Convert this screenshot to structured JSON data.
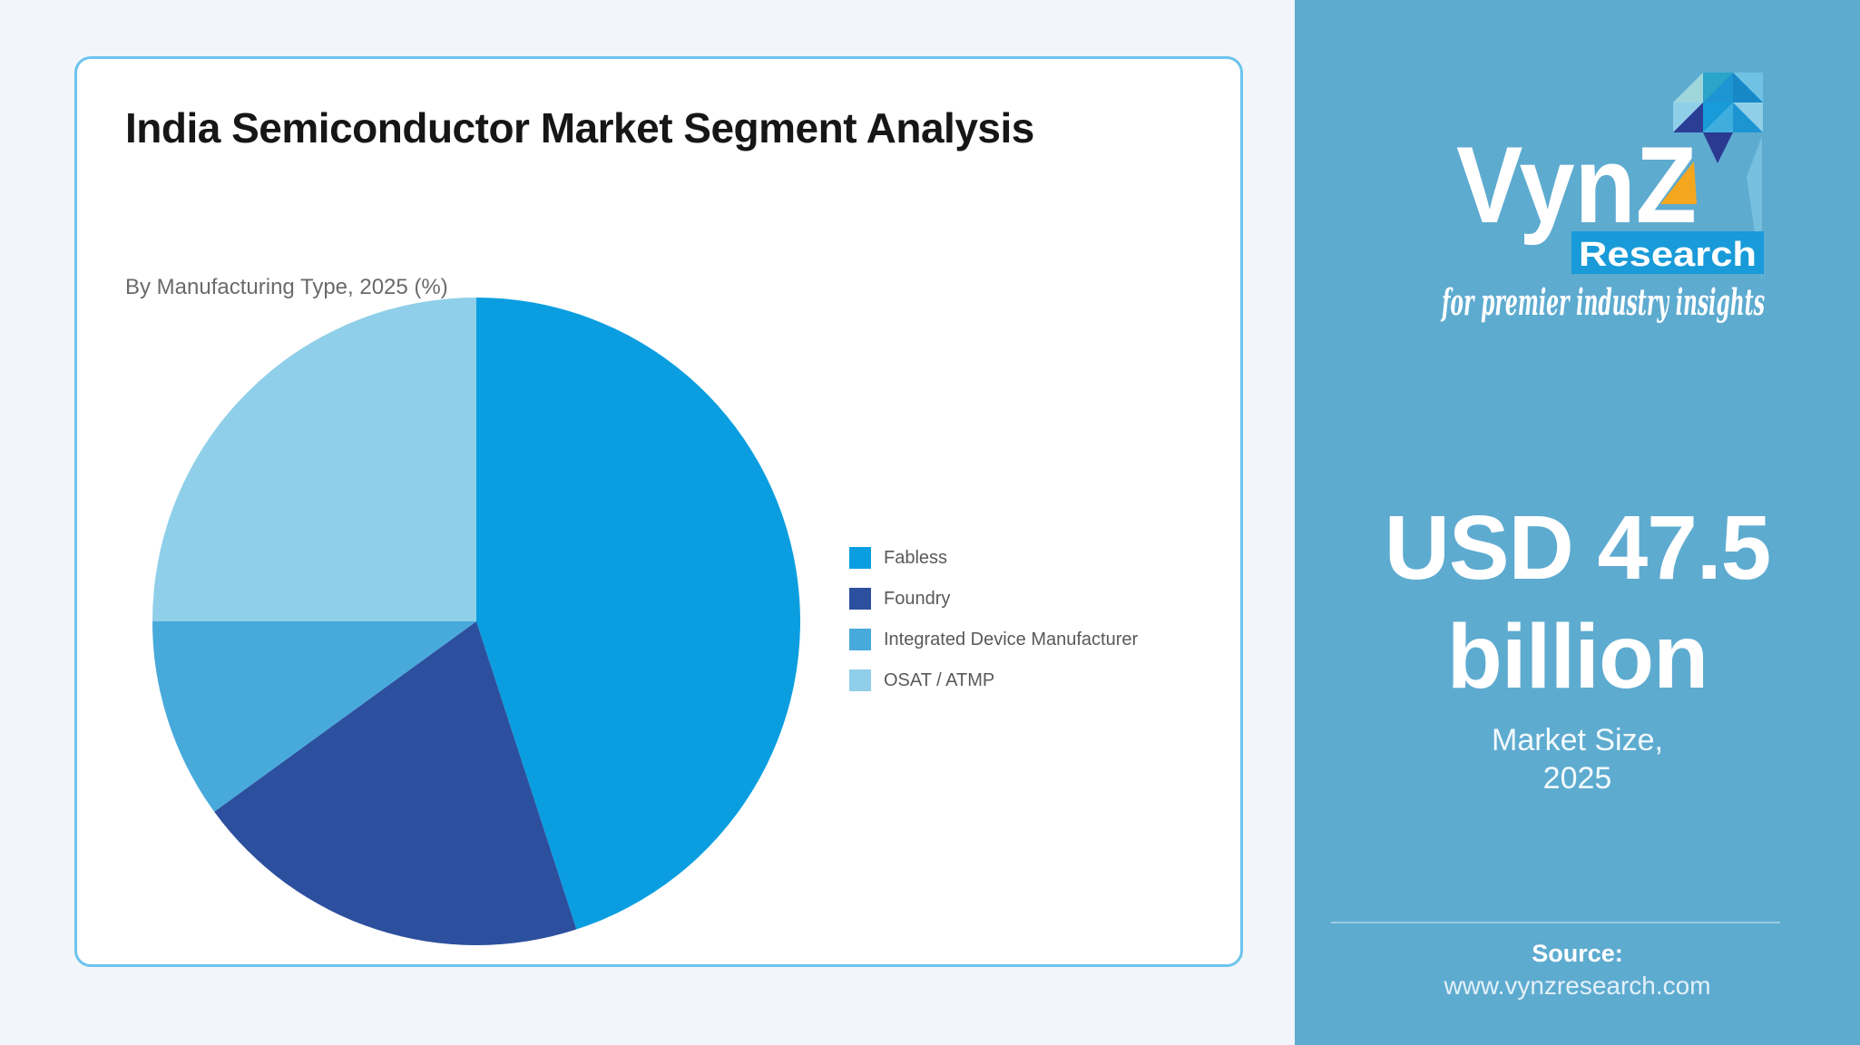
{
  "card": {
    "title": "India Semiconductor Market Segment Analysis",
    "subtitle": "By Manufacturing Type, 2025 (%)"
  },
  "chart_data": {
    "type": "pie",
    "title": "India Semiconductor Market Segment Analysis",
    "subtitle": "By Manufacturing Type, 2025 (%)",
    "unit": "%",
    "start_angle_deg": -90,
    "direction": "clockwise",
    "legend_position": "right",
    "segments": [
      {
        "label": "Fabless",
        "value": 45,
        "color": "#0A9EE0"
      },
      {
        "label": "Foundry",
        "value": 20,
        "color": "#2C4F9E"
      },
      {
        "label": "Integrated Device Manufacturer",
        "value": 10,
        "color": "#48A9DB"
      },
      {
        "label": "OSAT / ATMP",
        "value": 25,
        "color": "#90CFE9"
      }
    ]
  },
  "sidebar": {
    "logo": {
      "brand": "VynZ",
      "sub_brand": "Research",
      "tagline": "for premier industry insights"
    },
    "market_value": "USD 47.5 billion",
    "market_size_label": "Market Size,",
    "market_size_year": "2025",
    "source_label": "Source:",
    "source_url": "www.vynzresearch.com",
    "colors": {
      "panel_bg": "#5EABD0",
      "research_box": "#189BD8",
      "accent_yellow": "#F4A71E",
      "mosaic": [
        "#9FD6DB",
        "#2AA4C9",
        "#1E95D3",
        "#6FC2E4",
        "#1787C8",
        "#2B3E96",
        "#189CD9",
        "#3FAEDE",
        "#8FD0E8",
        "#2B3990",
        "#7FC6E4"
      ]
    }
  }
}
